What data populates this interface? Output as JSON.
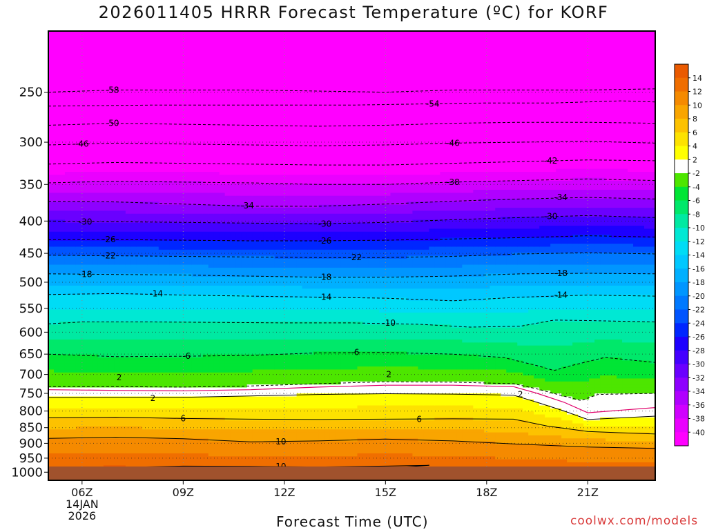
{
  "title": "2026011405 HRRR Forecast Temperature (ºC) for KORF",
  "credit": "coolwx.com/models",
  "chart_data": {
    "type": "contour-heatmap",
    "title": "2026011405 HRRR Forecast Temperature (ºC) for KORF",
    "xlabel": "Forecast Time (UTC)",
    "ylabel": "Pressure (hPa)",
    "x_range_hours_utc": [
      5,
      23
    ],
    "x_ticks": [
      {
        "hour": 6,
        "label": "06Z",
        "sub": [
          "14JAN",
          "2026"
        ]
      },
      {
        "hour": 9,
        "label": "09Z",
        "sub": []
      },
      {
        "hour": 12,
        "label": "12Z",
        "sub": []
      },
      {
        "hour": 15,
        "label": "15Z",
        "sub": []
      },
      {
        "hour": 18,
        "label": "18Z",
        "sub": []
      },
      {
        "hour": 21,
        "label": "21Z",
        "sub": []
      }
    ],
    "y_range_hpa": [
      1030,
      200
    ],
    "y_ticks": [
      250,
      300,
      350,
      400,
      450,
      500,
      550,
      600,
      650,
      700,
      750,
      800,
      850,
      900,
      950,
      1000
    ],
    "surface_hpa": 1016,
    "surface_color": "#a0522d",
    "grid": true,
    "isotherms": [
      {
        "value": -58,
        "line": [
          [
            5,
            250
          ],
          [
            7,
            248
          ],
          [
            9,
            248
          ],
          [
            11,
            248
          ],
          [
            13,
            249
          ],
          [
            15,
            250
          ],
          [
            17,
            248
          ],
          [
            19,
            248
          ],
          [
            21,
            248
          ],
          [
            23,
            247
          ]
        ]
      },
      {
        "value": -54,
        "line": [
          [
            5,
            263
          ],
          [
            8,
            262
          ],
          [
            11,
            262
          ],
          [
            14,
            262
          ],
          [
            16,
            261
          ],
          [
            18,
            260
          ],
          [
            20,
            260
          ],
          [
            22,
            258
          ],
          [
            23,
            259
          ]
        ]
      },
      {
        "value": -50,
        "line": [
          [
            5,
            282
          ],
          [
            7,
            280
          ],
          [
            9,
            281
          ],
          [
            11,
            282
          ],
          [
            13,
            283
          ],
          [
            15,
            282
          ],
          [
            17,
            280
          ],
          [
            19,
            279
          ],
          [
            21,
            279
          ],
          [
            23,
            280
          ]
        ]
      },
      {
        "value": -46,
        "line": [
          [
            5,
            303
          ],
          [
            7,
            301
          ],
          [
            9,
            302
          ],
          [
            11,
            303
          ],
          [
            13,
            304
          ],
          [
            15,
            303
          ],
          [
            17,
            301
          ],
          [
            19,
            300
          ],
          [
            21,
            299
          ],
          [
            23,
            301
          ]
        ]
      },
      {
        "value": -42,
        "line": [
          [
            5,
            325
          ],
          [
            7,
            323
          ],
          [
            9,
            324
          ],
          [
            11,
            325
          ],
          [
            13,
            326
          ],
          [
            15,
            326
          ],
          [
            17,
            324
          ],
          [
            19,
            322
          ],
          [
            21,
            320
          ],
          [
            23,
            321
          ]
        ]
      },
      {
        "value": -38,
        "line": [
          [
            5,
            348
          ],
          [
            7,
            346
          ],
          [
            9,
            347
          ],
          [
            11,
            348
          ],
          [
            13,
            350
          ],
          [
            15,
            350
          ],
          [
            17,
            347
          ],
          [
            19,
            345
          ],
          [
            21,
            343
          ],
          [
            23,
            345
          ]
        ]
      },
      {
        "value": -34,
        "line": [
          [
            5,
            372
          ],
          [
            7,
            373
          ],
          [
            9,
            376
          ],
          [
            11,
            379
          ],
          [
            13,
            379
          ],
          [
            15,
            376
          ],
          [
            17,
            372
          ],
          [
            19,
            369
          ],
          [
            21,
            367
          ],
          [
            23,
            369
          ]
        ]
      },
      {
        "value": -30,
        "line": [
          [
            5,
            400
          ],
          [
            7,
            401
          ],
          [
            9,
            402
          ],
          [
            11,
            403
          ],
          [
            13,
            404
          ],
          [
            15,
            402
          ],
          [
            17,
            398
          ],
          [
            19,
            395
          ],
          [
            21,
            392
          ],
          [
            23,
            395
          ]
        ]
      },
      {
        "value": -26,
        "line": [
          [
            5,
            428
          ],
          [
            7,
            428
          ],
          [
            9,
            429
          ],
          [
            11,
            430
          ],
          [
            13,
            430
          ],
          [
            15,
            429
          ],
          [
            17,
            427
          ],
          [
            19,
            425
          ],
          [
            21,
            422
          ],
          [
            23,
            424
          ]
        ]
      },
      {
        "value": -22,
        "line": [
          [
            5,
            453
          ],
          [
            7,
            454
          ],
          [
            9,
            455
          ],
          [
            11,
            456
          ],
          [
            13,
            457
          ],
          [
            15,
            457
          ],
          [
            17,
            455
          ],
          [
            19,
            451
          ],
          [
            21,
            449
          ],
          [
            23,
            451
          ]
        ]
      },
      {
        "value": -18,
        "line": [
          [
            5,
            485
          ],
          [
            7,
            486
          ],
          [
            9,
            487
          ],
          [
            11,
            489
          ],
          [
            13,
            491
          ],
          [
            15,
            491
          ],
          [
            17,
            489
          ],
          [
            19,
            485
          ],
          [
            21,
            484
          ],
          [
            23,
            485
          ]
        ]
      },
      {
        "value": -14,
        "line": [
          [
            5,
            523
          ],
          [
            7,
            521
          ],
          [
            9,
            524
          ],
          [
            11,
            526
          ],
          [
            13,
            528
          ],
          [
            15,
            530
          ],
          [
            17,
            535
          ],
          [
            19,
            528
          ],
          [
            21,
            524
          ],
          [
            23,
            526
          ]
        ]
      },
      {
        "value": -10,
        "line": [
          [
            5,
            582
          ],
          [
            6,
            578
          ],
          [
            8,
            578
          ],
          [
            10,
            579
          ],
          [
            12,
            580
          ],
          [
            14,
            580
          ],
          [
            16,
            583
          ],
          [
            17.5,
            589
          ],
          [
            19,
            587
          ],
          [
            20,
            574
          ],
          [
            21,
            575
          ],
          [
            23,
            578
          ]
        ]
      },
      {
        "value": -6,
        "line": [
          [
            5,
            650
          ],
          [
            7,
            656
          ],
          [
            9,
            655
          ],
          [
            11,
            653
          ],
          [
            13,
            647
          ],
          [
            15,
            646
          ],
          [
            17,
            650
          ],
          [
            18.5,
            658
          ],
          [
            19.5,
            678
          ],
          [
            20,
            690
          ],
          [
            20.5,
            678
          ],
          [
            21.5,
            658
          ],
          [
            23,
            670
          ]
        ]
      },
      {
        "value": -2,
        "line": [
          [
            5,
            732
          ],
          [
            7,
            732
          ],
          [
            9,
            733
          ],
          [
            11,
            730
          ],
          [
            13,
            724
          ],
          [
            15,
            719
          ],
          [
            17,
            720
          ],
          [
            18.8,
            724
          ],
          [
            19.5,
            738
          ],
          [
            20.3,
            758
          ],
          [
            20.8,
            770
          ],
          [
            21.3,
            753
          ],
          [
            23,
            750
          ]
        ]
      },
      {
        "value": 2,
        "line": [
          [
            5,
            762
          ],
          [
            7,
            761
          ],
          [
            9,
            761
          ],
          [
            11,
            757
          ],
          [
            13,
            753
          ],
          [
            15,
            751
          ],
          [
            17,
            752
          ],
          [
            18.8,
            755
          ],
          [
            19.5,
            775
          ],
          [
            20.3,
            800
          ],
          [
            21,
            825
          ],
          [
            23,
            815
          ]
        ]
      },
      {
        "value": 6,
        "line": [
          [
            5,
            820
          ],
          [
            7,
            818
          ],
          [
            9,
            822
          ],
          [
            11,
            824
          ],
          [
            13,
            825
          ],
          [
            15,
            824
          ],
          [
            17,
            823
          ],
          [
            18.8,
            824
          ],
          [
            19.8,
            845
          ],
          [
            21,
            862
          ],
          [
            23,
            870
          ]
        ]
      },
      {
        "value": 10,
        "line": [
          [
            5,
            884
          ],
          [
            7,
            880
          ],
          [
            9,
            885
          ],
          [
            11,
            895
          ],
          [
            13,
            892
          ],
          [
            15,
            886
          ],
          [
            17,
            892
          ],
          [
            19,
            903
          ],
          [
            21,
            912
          ],
          [
            23,
            917
          ]
        ]
      },
      {
        "value": 10,
        "line": [
          [
            5,
            990
          ],
          [
            7,
            983
          ],
          [
            9,
            978
          ],
          [
            11,
            979
          ],
          [
            13,
            981
          ],
          [
            15,
            978
          ],
          [
            16.3,
            975
          ],
          [
            14.5,
            990
          ],
          [
            12.5,
            1003
          ],
          [
            11,
            1005
          ],
          [
            9,
            1000
          ],
          [
            7,
            997
          ],
          [
            5,
            995
          ]
        ]
      },
      {
        "value": 10,
        "line": [
          [
            16.8,
            1008
          ],
          [
            19,
            1000
          ],
          [
            21,
            997
          ],
          [
            23,
            993
          ]
        ]
      }
    ],
    "labels_shown": [
      {
        "text": "-58",
        "hour": 6.9,
        "hpa": 248
      },
      {
        "text": "-54",
        "hour": 16.4,
        "hpa": 261
      },
      {
        "text": "-50",
        "hour": 6.9,
        "hpa": 280
      },
      {
        "text": "-46",
        "hour": 6.0,
        "hpa": 302
      },
      {
        "text": "-46",
        "hour": 17.0,
        "hpa": 301
      },
      {
        "text": "-42",
        "hour": 19.9,
        "hpa": 321
      },
      {
        "text": "-38",
        "hour": 17.0,
        "hpa": 347
      },
      {
        "text": "-34",
        "hour": 10.9,
        "hpa": 378
      },
      {
        "text": "-34",
        "hour": 20.2,
        "hpa": 367
      },
      {
        "text": "-30",
        "hour": 6.1,
        "hpa": 401
      },
      {
        "text": "-30",
        "hour": 13.2,
        "hpa": 404
      },
      {
        "text": "-30",
        "hour": 19.9,
        "hpa": 393
      },
      {
        "text": "-26",
        "hour": 6.8,
        "hpa": 428
      },
      {
        "text": "-26",
        "hour": 13.2,
        "hpa": 430
      },
      {
        "text": "-22",
        "hour": 6.8,
        "hpa": 454
      },
      {
        "text": "-22",
        "hour": 14.1,
        "hpa": 457
      },
      {
        "text": "-18",
        "hour": 6.1,
        "hpa": 486
      },
      {
        "text": "-18",
        "hour": 13.2,
        "hpa": 491
      },
      {
        "text": "-18",
        "hour": 20.2,
        "hpa": 484
      },
      {
        "text": "-14",
        "hour": 8.2,
        "hpa": 521
      },
      {
        "text": "-14",
        "hour": 13.2,
        "hpa": 528
      },
      {
        "text": "-14",
        "hour": 20.2,
        "hpa": 524
      },
      {
        "text": "-10",
        "hour": 15.1,
        "hpa": 580
      },
      {
        "text": "-6",
        "hour": 9.1,
        "hpa": 655
      },
      {
        "text": "-6",
        "hour": 14.1,
        "hpa": 646
      },
      {
        "text": "2",
        "hour": 7.1,
        "hpa": 708
      },
      {
        "text": "2",
        "hour": 15.1,
        "hpa": 700
      },
      {
        "text": "2",
        "hour": 8.1,
        "hpa": 763
      },
      {
        "text": "2",
        "hour": 19.0,
        "hpa": 753
      },
      {
        "text": "6",
        "hour": 9.0,
        "hpa": 822
      },
      {
        "text": "6",
        "hour": 16.0,
        "hpa": 824
      },
      {
        "text": "10",
        "hour": 11.9,
        "hpa": 895
      },
      {
        "text": "10",
        "hour": 11.9,
        "hpa": 980
      }
    ],
    "colorbar": {
      "levels": [
        14,
        12,
        10,
        8,
        6,
        4,
        2,
        -2,
        -4,
        -6,
        -8,
        -10,
        -12,
        -14,
        -16,
        -18,
        -20,
        -22,
        -24,
        -26,
        -28,
        -30,
        -32,
        -34,
        -36,
        -38,
        -40
      ],
      "bands": [
        "#ea5a00",
        "#f06e00",
        "#f58a00",
        "#f9a500",
        "#fdc200",
        "#fde200",
        "#ffff00",
        "#ffffff",
        "#4de600",
        "#00e535",
        "#00e86a",
        "#00e9a2",
        "#00e8d4",
        "#00dcf5",
        "#00c8ff",
        "#00b0ff",
        "#0096ff",
        "#0079ff",
        "#0054ff",
        "#0026ff",
        "#1d00ff",
        "#4400ff",
        "#6a00ff",
        "#8e00ff",
        "#b000ff",
        "#d000ff",
        "#ea00ff",
        "#ff00ff"
      ],
      "label_band_index_offset": 0
    }
  }
}
